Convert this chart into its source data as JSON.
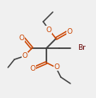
{
  "bg_color": "#f0f0f0",
  "bond_color": "#404040",
  "bond_width": 1.1,
  "atom_colors": {
    "O": "#cc4400",
    "Br": "#660000",
    "C": "#404040"
  },
  "figsize": [
    1.2,
    1.22
  ],
  "dpi": 100,
  "xlim": [
    0,
    120
  ],
  "ylim": [
    0,
    122
  ]
}
